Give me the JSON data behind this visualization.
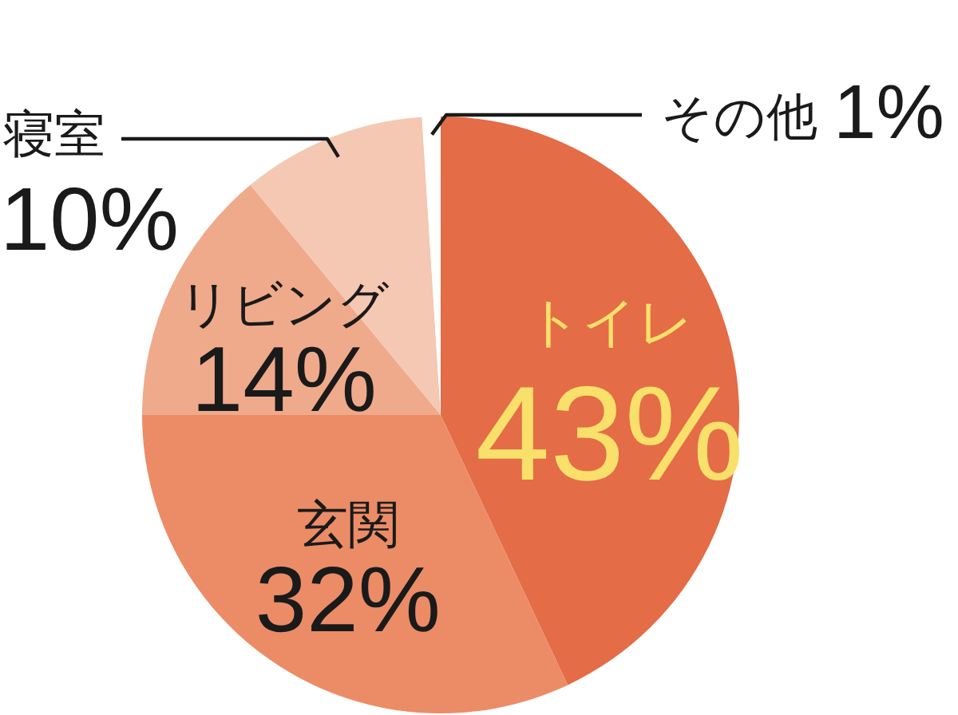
{
  "chart_data": {
    "type": "pie",
    "categories": [
      "トイレ",
      "玄関",
      "リビング",
      "寝室",
      "その他"
    ],
    "values": [
      43,
      32,
      14,
      10,
      1
    ],
    "colors": [
      "#e46c46",
      "#eb8c67",
      "#efaa8b",
      "#f4c8b2",
      "#ffffff"
    ],
    "value_labels": [
      "43%",
      "32%",
      "14%",
      "10%",
      "1%"
    ]
  }
}
